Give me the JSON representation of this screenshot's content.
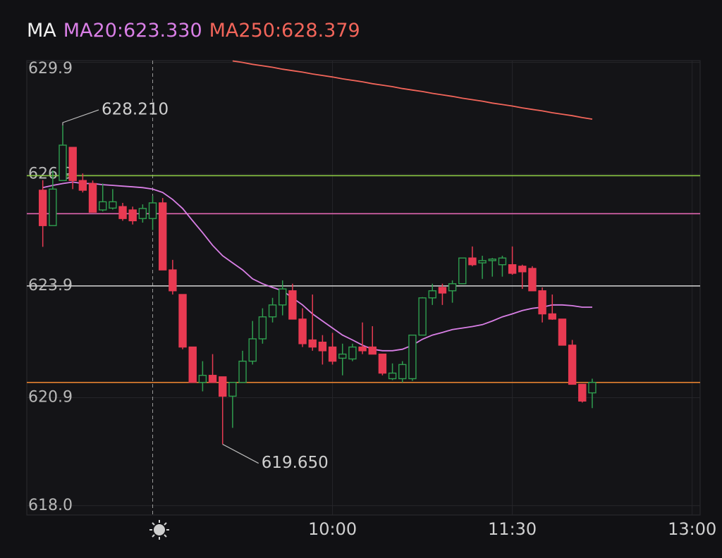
{
  "chart_data": {
    "type": "candlestick",
    "title": "MA",
    "x": [
      "07:35",
      "07:40",
      "07:45",
      "07:50",
      "07:55",
      "08:00",
      "08:05",
      "08:10",
      "08:15",
      "08:20",
      "08:25",
      "08:30",
      "08:35",
      "08:40",
      "08:45",
      "08:50",
      "08:55",
      "09:00",
      "09:05",
      "09:10",
      "09:15",
      "09:20",
      "09:25",
      "09:30",
      "09:35",
      "09:40",
      "09:45",
      "09:50",
      "09:55",
      "10:00",
      "10:05",
      "10:10",
      "10:15",
      "10:20",
      "10:25",
      "10:30",
      "10:35",
      "10:40",
      "10:45",
      "10:50",
      "10:55",
      "11:00",
      "11:05",
      "11:10",
      "11:15",
      "11:20",
      "11:25",
      "11:30",
      "11:35",
      "11:40",
      "11:45",
      "11:50",
      "11:55",
      "12:00",
      "12:05",
      "12:10"
    ],
    "open": [
      626.47,
      625.52,
      626.73,
      627.62,
      626.73,
      626.65,
      625.94,
      625.99,
      626.03,
      625.94,
      625.71,
      625.71,
      626.13,
      624.33,
      623.67,
      622.26,
      621.31,
      621.5,
      621.46,
      620.94,
      621.31,
      621.88,
      622.48,
      623.07,
      623.39,
      623.77,
      623.01,
      622.45,
      622.39,
      622.26,
      621.96,
      621.94,
      622.26,
      622.26,
      622.07,
      621.41,
      621.41,
      621.41,
      622.58,
      623.58,
      623.86,
      623.77,
      623.96,
      624.65,
      624.52,
      624.58,
      624.47,
      624.47,
      624.43,
      624.37,
      623.77,
      623.15,
      623.01,
      622.31,
      621.26,
      621.03
    ],
    "high": [
      626.74,
      627.0,
      628.21,
      627.62,
      626.92,
      626.73,
      626.65,
      626.5,
      626.13,
      626.03,
      626.09,
      626.32,
      626.26,
      624.6,
      623.67,
      622.26,
      621.88,
      622.07,
      621.46,
      621.31,
      622.16,
      622.96,
      623.3,
      623.58,
      624.05,
      623.96,
      623.3,
      623.67,
      622.58,
      622.64,
      622.35,
      622.35,
      622.92,
      622.82,
      622.07,
      621.82,
      621.88,
      622.58,
      623.6,
      623.96,
      623.96,
      624.05,
      624.65,
      624.96,
      624.71,
      624.65,
      624.71,
      624.96,
      624.47,
      624.43,
      623.86,
      623.67,
      623.01,
      622.45,
      621.26,
      621.41
    ],
    "low": [
      624.95,
      625.52,
      626.73,
      626.5,
      626.41,
      625.88,
      625.9,
      625.95,
      625.65,
      625.55,
      625.6,
      625.4,
      624.33,
      623.67,
      622.2,
      621.31,
      621.07,
      621.31,
      619.65,
      620.09,
      621.31,
      621.79,
      622.35,
      622.92,
      623.11,
      623.01,
      622.26,
      622.16,
      621.79,
      621.79,
      621.5,
      621.88,
      622.07,
      622.07,
      621.5,
      621.37,
      621.31,
      621.35,
      622.58,
      623.39,
      623.39,
      623.45,
      623.96,
      624.43,
      624.09,
      624.15,
      624.15,
      624.2,
      623.82,
      623.77,
      622.92,
      622.99,
      622.31,
      621.26,
      620.77,
      620.62
    ],
    "close": [
      625.52,
      626.5,
      627.68,
      626.73,
      626.47,
      625.88,
      626.16,
      626.16,
      625.71,
      625.65,
      625.98,
      626.13,
      624.33,
      623.77,
      622.26,
      621.31,
      621.5,
      621.31,
      620.94,
      621.31,
      621.88,
      622.48,
      623.07,
      623.39,
      623.82,
      623.01,
      622.35,
      622.26,
      622.16,
      621.88,
      622.07,
      622.26,
      622.16,
      622.07,
      621.56,
      621.56,
      621.79,
      622.58,
      623.58,
      623.77,
      623.71,
      623.96,
      624.65,
      624.47,
      624.58,
      624.62,
      624.65,
      624.24,
      624.28,
      623.77,
      623.15,
      623.01,
      622.31,
      621.26,
      620.81,
      621.31
    ],
    "up_color": "#2f9e4f",
    "down_color": "#e83a52",
    "series": [
      {
        "name": "MA20:623.330",
        "color": "#d97fe6",
        "values": [
          626.54,
          626.6,
          626.65,
          626.69,
          626.65,
          626.65,
          626.62,
          626.6,
          626.58,
          626.56,
          626.54,
          626.5,
          626.41,
          626.22,
          625.98,
          625.65,
          625.33,
          624.99,
          624.71,
          624.52,
          624.33,
          624.09,
          623.96,
          623.86,
          623.77,
          623.58,
          623.39,
          623.15,
          622.96,
          622.77,
          622.58,
          622.45,
          622.31,
          622.2,
          622.16,
          622.16,
          622.2,
          622.31,
          622.47,
          622.58,
          622.65,
          622.73,
          622.77,
          622.81,
          622.86,
          622.96,
          623.07,
          623.15,
          623.24,
          623.3,
          623.33,
          623.39,
          623.39,
          623.37,
          623.33,
          623.33
        ]
      },
      {
        "name": "MA250:628.379",
        "color": "#f2655a",
        "values": [
          null,
          null,
          null,
          null,
          null,
          null,
          null,
          null,
          null,
          null,
          null,
          null,
          null,
          null,
          null,
          null,
          null,
          null,
          null,
          629.94,
          629.9,
          629.85,
          629.81,
          629.77,
          629.72,
          629.68,
          629.64,
          629.59,
          629.55,
          629.51,
          629.46,
          629.42,
          629.38,
          629.33,
          629.29,
          629.25,
          629.2,
          629.16,
          629.12,
          629.07,
          629.03,
          628.99,
          628.94,
          628.9,
          628.86,
          628.81,
          628.77,
          628.73,
          628.68,
          628.64,
          628.6,
          628.55,
          628.51,
          628.47,
          628.42,
          628.379
        ]
      }
    ],
    "reference_lines": [
      {
        "value": 626.86,
        "color": "#8fcf45"
      },
      {
        "value": 625.84,
        "color": "#e066b0"
      },
      {
        "value": 623.9,
        "color": "#c8c8c8"
      },
      {
        "value": 621.31,
        "color": "#e38030"
      }
    ],
    "annotations": [
      {
        "text": "628.210",
        "value": 628.21,
        "x": "07:45"
      },
      {
        "text": "619.650",
        "value": 619.65,
        "x": "09:05"
      }
    ],
    "session_marker": "08:30",
    "xlim": [
      "07:27",
      "13:04"
    ],
    "xticks": [
      "10:00",
      "11:30",
      "13:00"
    ],
    "ylim": [
      617.75,
      629.95
    ],
    "yticks": [
      {
        "value": 618,
        "label": "618.0"
      },
      620.9,
      623.9,
      626.9,
      629.9
    ],
    "grid": true
  }
}
